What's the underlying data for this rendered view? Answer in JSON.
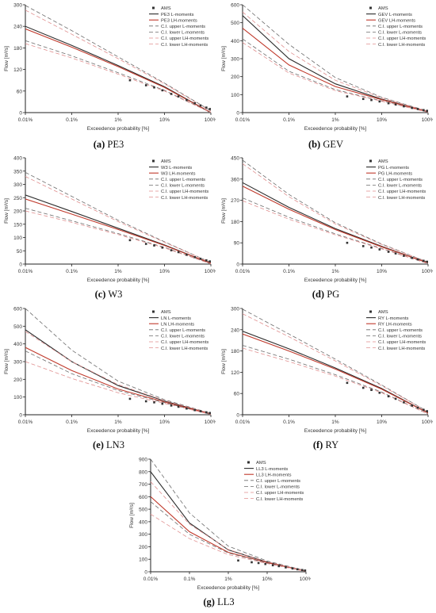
{
  "figure": {
    "legend_common": {
      "ams": "AMS",
      "ci_upper_l": "C.I. upper L-moments",
      "ci_lower_l": "C.I. lower L-moments",
      "ci_upper_lh": "C.I. upper LH-moments",
      "ci_lower_lh": "C.I. lower LH-moments"
    },
    "xlabel": "Exceedence probability [%]",
    "ylabel": "Flow [m³/s]",
    "x_ticks": [
      "0.01%",
      "0.1%",
      "1%",
      "10%",
      "100%"
    ],
    "colors": {
      "l_moments": "#2b2b2b",
      "lh_moments": "#c0392b",
      "ci_l": "#6b6b6b",
      "ci_lh": "#e08f8f",
      "ams": "#333333"
    }
  },
  "chart_data": [
    {
      "type": "line",
      "id": "pe3",
      "caption_letter": "(a)",
      "caption_name": "PE3",
      "legend_l": "PE3 L-moments",
      "legend_lh": "PE3 LH-moments",
      "x": [
        "0.01%",
        "0.1%",
        "1%",
        "10%",
        "100%"
      ],
      "ylim": [
        0,
        300
      ],
      "y_ticks": [
        0,
        60,
        120,
        180,
        240,
        300
      ],
      "series": [
        {
          "name": "PE3 L-moments",
          "values": [
            240,
            187,
            131,
            72,
            0
          ]
        },
        {
          "name": "PE3 LH-moments",
          "values": [
            233,
            182,
            128,
            70,
            0
          ]
        },
        {
          "name": "C.I. upper L-moments",
          "values": [
            298,
            228,
            155,
            82,
            5
          ]
        },
        {
          "name": "C.I. lower L-moments",
          "values": [
            200,
            158,
            111,
            62,
            0
          ]
        },
        {
          "name": "C.I. upper LH-moments",
          "values": [
            285,
            218,
            150,
            80,
            4
          ]
        },
        {
          "name": "C.I. lower LH-moments",
          "values": [
            192,
            152,
            107,
            60,
            0
          ]
        }
      ],
      "ams": [
        [
          1.8,
          90
        ],
        [
          4,
          76
        ],
        [
          6,
          70
        ],
        [
          9,
          62
        ],
        [
          14,
          52
        ],
        [
          20,
          45
        ],
        [
          30,
          35
        ],
        [
          45,
          26
        ],
        [
          60,
          20
        ],
        [
          80,
          14
        ],
        [
          95,
          10
        ]
      ]
    },
    {
      "type": "line",
      "id": "gev",
      "caption_letter": "(b)",
      "caption_name": "GEV",
      "legend_l": "GEV L-moments",
      "legend_lh": "GEV LH-moments",
      "x": [
        "0.01%",
        "0.1%",
        "1%",
        "10%",
        "100%"
      ],
      "ylim": [
        0,
        600
      ],
      "y_ticks": [
        0,
        100,
        200,
        300,
        400,
        500,
        600
      ],
      "series": [
        {
          "name": "GEV L-moments",
          "values": [
            540,
            300,
            160,
            75,
            5
          ]
        },
        {
          "name": "GEV LH-moments",
          "values": [
            470,
            265,
            145,
            72,
            5
          ]
        },
        {
          "name": "C.I. upper L-moments",
          "values": [
            600,
            380,
            195,
            85,
            8
          ]
        },
        {
          "name": "C.I. lower L-moments",
          "values": [
            410,
            230,
            128,
            65,
            2
          ]
        },
        {
          "name": "C.I. upper LH-moments",
          "values": [
            560,
            340,
            180,
            82,
            7
          ]
        },
        {
          "name": "C.I. lower LH-moments",
          "values": [
            390,
            220,
            122,
            63,
            2
          ]
        }
      ],
      "ams": [
        [
          1.8,
          90
        ],
        [
          4,
          76
        ],
        [
          6,
          70
        ],
        [
          9,
          62
        ],
        [
          14,
          52
        ],
        [
          20,
          45
        ],
        [
          30,
          35
        ],
        [
          45,
          26
        ],
        [
          60,
          20
        ],
        [
          80,
          14
        ],
        [
          95,
          10
        ]
      ]
    },
    {
      "type": "line",
      "id": "w3",
      "caption_letter": "(c)",
      "caption_name": "W3",
      "legend_l": "W3 L-moments",
      "legend_lh": "W3 LH-moments",
      "x": [
        "0.01%",
        "0.1%",
        "1%",
        "10%",
        "100%"
      ],
      "ylim": [
        0,
        400
      ],
      "y_ticks": [
        0,
        50,
        100,
        150,
        200,
        250,
        300,
        350,
        400
      ],
      "series": [
        {
          "name": "W3 L-moments",
          "values": [
            260,
            198,
            135,
            72,
            3
          ]
        },
        {
          "name": "W3 LH-moments",
          "values": [
            245,
            188,
            130,
            70,
            3
          ]
        },
        {
          "name": "C.I. upper L-moments",
          "values": [
            345,
            255,
            165,
            84,
            6
          ]
        },
        {
          "name": "C.I. lower L-moments",
          "values": [
            210,
            163,
            115,
            63,
            1
          ]
        },
        {
          "name": "C.I. upper LH-moments",
          "values": [
            330,
            245,
            160,
            82,
            6
          ]
        },
        {
          "name": "C.I. lower LH-moments",
          "values": [
            200,
            157,
            111,
            61,
            1
          ]
        }
      ],
      "ams": [
        [
          1.8,
          90
        ],
        [
          4,
          76
        ],
        [
          6,
          70
        ],
        [
          9,
          62
        ],
        [
          14,
          52
        ],
        [
          20,
          45
        ],
        [
          30,
          35
        ],
        [
          45,
          26
        ],
        [
          60,
          20
        ],
        [
          80,
          14
        ],
        [
          95,
          10
        ]
      ]
    },
    {
      "type": "line",
      "id": "pg",
      "caption_letter": "(d)",
      "caption_name": "PG",
      "legend_l": "PG L-moments",
      "legend_lh": "PG LH-moments",
      "x": [
        "0.01%",
        "0.1%",
        "1%",
        "10%",
        "100%"
      ],
      "ylim": [
        0,
        450
      ],
      "y_ticks": [
        0,
        90,
        180,
        270,
        360,
        450
      ],
      "series": [
        {
          "name": "PG L-moments",
          "values": [
            345,
            240,
            150,
            75,
            5
          ]
        },
        {
          "name": "PG LH-moments",
          "values": [
            330,
            232,
            146,
            73,
            5
          ]
        },
        {
          "name": "C.I. upper L-moments",
          "values": [
            440,
            295,
            175,
            85,
            8
          ]
        },
        {
          "name": "C.I. lower L-moments",
          "values": [
            280,
            198,
            128,
            66,
            2
          ]
        },
        {
          "name": "C.I. upper LH-moments",
          "values": [
            425,
            285,
            170,
            83,
            8
          ]
        },
        {
          "name": "C.I. lower LH-moments",
          "values": [
            268,
            190,
            124,
            64,
            2
          ]
        }
      ],
      "ams": [
        [
          1.8,
          90
        ],
        [
          4,
          76
        ],
        [
          6,
          70
        ],
        [
          9,
          62
        ],
        [
          14,
          52
        ],
        [
          20,
          45
        ],
        [
          30,
          35
        ],
        [
          45,
          26
        ],
        [
          60,
          20
        ],
        [
          80,
          14
        ],
        [
          95,
          10
        ]
      ]
    },
    {
      "type": "line",
      "id": "ln3",
      "caption_letter": "(e)",
      "caption_name": "LN3",
      "legend_l": "LN L-moments",
      "legend_lh": "LN LH-moments",
      "x": [
        "0.01%",
        "0.1%",
        "1%",
        "10%",
        "100%"
      ],
      "ylim": [
        0,
        600
      ],
      "y_ticks": [
        0,
        100,
        200,
        300,
        400,
        500,
        600
      ],
      "series": [
        {
          "name": "LN L-moments",
          "values": [
            480,
            300,
            165,
            78,
            5
          ]
        },
        {
          "name": "LN LH-moments",
          "values": [
            380,
            250,
            145,
            72,
            5
          ]
        },
        {
          "name": "C.I. upper L-moments",
          "values": [
            600,
            365,
            190,
            85,
            8
          ]
        },
        {
          "name": "C.I. lower L-moments",
          "values": [
            360,
            232,
            137,
            68,
            2
          ]
        },
        {
          "name": "C.I. upper LH-moments",
          "values": [
            470,
            300,
            170,
            80,
            7
          ]
        },
        {
          "name": "C.I. lower LH-moments",
          "values": [
            300,
            205,
            124,
            64,
            2
          ]
        }
      ],
      "ams": [
        [
          1.8,
          90
        ],
        [
          4,
          76
        ],
        [
          6,
          70
        ],
        [
          9,
          62
        ],
        [
          14,
          52
        ],
        [
          20,
          45
        ],
        [
          30,
          35
        ],
        [
          45,
          26
        ],
        [
          60,
          20
        ],
        [
          80,
          14
        ],
        [
          95,
          10
        ]
      ]
    },
    {
      "type": "line",
      "id": "ry",
      "caption_letter": "(f)",
      "caption_name": "RY",
      "legend_l": "RY L-moments",
      "legend_lh": "RY LH-moments",
      "x": [
        "0.01%",
        "0.1%",
        "1%",
        "10%",
        "100%"
      ],
      "ylim": [
        0,
        300
      ],
      "y_ticks": [
        0,
        60,
        120,
        180,
        240,
        300
      ],
      "series": [
        {
          "name": "RY L-moments",
          "values": [
            236,
            186,
            132,
            74,
            5
          ]
        },
        {
          "name": "RY LH-moments",
          "values": [
            228,
            180,
            129,
            72,
            5
          ]
        },
        {
          "name": "C.I. upper L-moments",
          "values": [
            298,
            228,
            157,
            84,
            8
          ]
        },
        {
          "name": "C.I. lower L-moments",
          "values": [
            196,
            157,
            113,
            64,
            2
          ]
        },
        {
          "name": "C.I. upper LH-moments",
          "values": [
            285,
            220,
            152,
            82,
            8
          ]
        },
        {
          "name": "C.I. lower LH-moments",
          "values": [
            188,
            150,
            109,
            62,
            2
          ]
        }
      ],
      "ams": [
        [
          1.8,
          90
        ],
        [
          4,
          76
        ],
        [
          6,
          70
        ],
        [
          9,
          62
        ],
        [
          14,
          52
        ],
        [
          20,
          45
        ],
        [
          30,
          35
        ],
        [
          45,
          26
        ],
        [
          60,
          20
        ],
        [
          80,
          14
        ],
        [
          95,
          10
        ]
      ]
    },
    {
      "type": "line",
      "id": "ll3",
      "caption_letter": "(g)",
      "caption_name": "LL3",
      "legend_l": "LL3 L-moments",
      "legend_lh": "LL3 LH-moments",
      "x": [
        "0.01%",
        "0.1%",
        "1%",
        "10%",
        "100%"
      ],
      "ylim": [
        0,
        900
      ],
      "y_ticks": [
        0,
        100,
        200,
        300,
        400,
        500,
        600,
        700,
        800,
        900
      ],
      "series": [
        {
          "name": "LL3 L-moments",
          "values": [
            800,
            390,
            175,
            78,
            5
          ]
        },
        {
          "name": "LL3 LH-moments",
          "values": [
            600,
            320,
            155,
            73,
            5
          ]
        },
        {
          "name": "C.I. upper L-moments",
          "values": [
            900,
            470,
            205,
            86,
            8
          ]
        },
        {
          "name": "C.I. lower L-moments",
          "values": [
            560,
            300,
            150,
            70,
            2
          ]
        },
        {
          "name": "C.I. upper LH-moments",
          "values": [
            720,
            380,
            178,
            80,
            7
          ]
        },
        {
          "name": "C.I. lower LH-moments",
          "values": [
            460,
            265,
            137,
            66,
            2
          ]
        }
      ],
      "ams": [
        [
          1.8,
          90
        ],
        [
          4,
          76
        ],
        [
          6,
          70
        ],
        [
          9,
          62
        ],
        [
          14,
          52
        ],
        [
          20,
          45
        ],
        [
          30,
          35
        ],
        [
          45,
          26
        ],
        [
          60,
          20
        ],
        [
          80,
          14
        ],
        [
          95,
          10
        ]
      ]
    }
  ]
}
